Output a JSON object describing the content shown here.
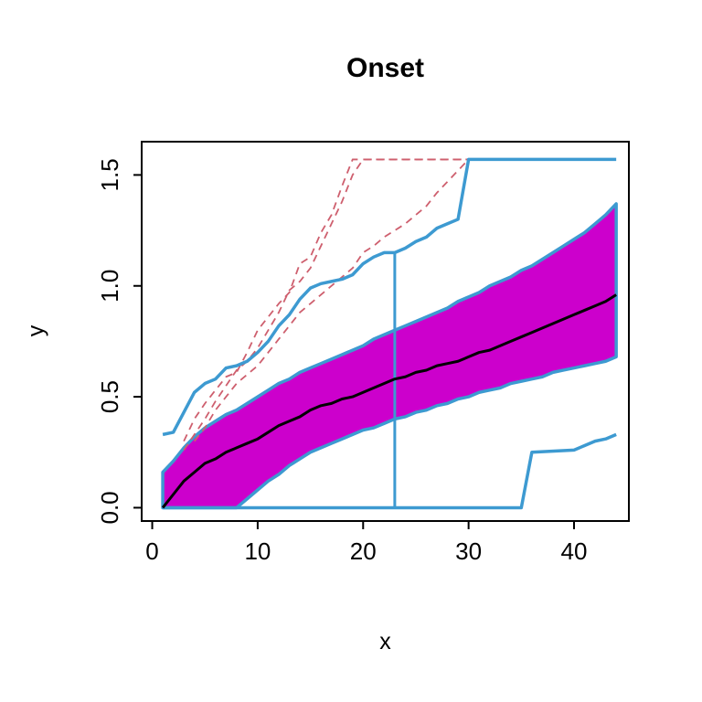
{
  "chart_data": {
    "type": "line",
    "title": "Onset",
    "xlabel": "x",
    "ylabel": "y",
    "xlim": [
      -1.0,
      45.2
    ],
    "ylim": [
      -0.06,
      1.65
    ],
    "xticks": [
      0,
      10,
      20,
      30,
      40
    ],
    "ytick_labels": [
      "0.0",
      "0.5",
      "1.0",
      "1.5"
    ],
    "ytick_values": [
      0,
      0.5,
      1.0,
      1.5
    ],
    "grid": false,
    "legend": null,
    "colors": {
      "band_fill": "#CC00CC",
      "envelope": "#3D9AD1",
      "median": "#000000",
      "dashed": "#CE5F6E",
      "box": "#000000",
      "tick": "#000000"
    },
    "band": {
      "x": [
        1,
        2,
        3,
        4,
        5,
        6,
        7,
        8,
        9,
        10,
        11,
        12,
        13,
        14,
        15,
        16,
        17,
        18,
        19,
        20,
        21,
        22,
        23,
        24,
        25,
        26,
        27,
        28,
        29,
        30,
        31,
        32,
        33,
        34,
        35,
        36,
        37,
        38,
        39,
        40,
        41,
        42,
        43,
        44
      ],
      "upper": [
        0.16,
        0.21,
        0.27,
        0.32,
        0.36,
        0.39,
        0.42,
        0.44,
        0.47,
        0.5,
        0.53,
        0.56,
        0.58,
        0.61,
        0.63,
        0.65,
        0.67,
        0.69,
        0.71,
        0.73,
        0.76,
        0.78,
        0.8,
        0.82,
        0.84,
        0.86,
        0.88,
        0.9,
        0.93,
        0.95,
        0.97,
        1.0,
        1.02,
        1.04,
        1.07,
        1.09,
        1.12,
        1.15,
        1.18,
        1.21,
        1.24,
        1.28,
        1.32,
        1.37
      ],
      "lower": [
        0.0,
        0.0,
        0.0,
        0.0,
        0.0,
        0.0,
        0.0,
        0.0,
        0.04,
        0.08,
        0.12,
        0.15,
        0.19,
        0.22,
        0.25,
        0.27,
        0.29,
        0.31,
        0.33,
        0.35,
        0.36,
        0.38,
        0.4,
        0.41,
        0.43,
        0.44,
        0.46,
        0.47,
        0.49,
        0.5,
        0.52,
        0.53,
        0.54,
        0.56,
        0.57,
        0.58,
        0.59,
        0.61,
        0.62,
        0.63,
        0.64,
        0.65,
        0.66,
        0.68
      ]
    },
    "series": [
      {
        "name": "dashed-replicate-1",
        "color": "dashed",
        "width": 1.8,
        "dash": "8 6",
        "x": [
          3,
          4,
          5,
          6,
          7,
          8,
          9,
          10,
          11,
          12,
          13,
          14,
          15,
          16,
          17,
          18,
          19,
          30
        ],
        "y": [
          0.3,
          0.4,
          0.47,
          0.53,
          0.59,
          0.61,
          0.7,
          0.8,
          0.86,
          0.92,
          0.97,
          1.1,
          1.13,
          1.24,
          1.32,
          1.45,
          1.57,
          1.57
        ]
      },
      {
        "name": "dashed-replicate-2",
        "color": "dashed",
        "width": 1.8,
        "dash": "8 6",
        "x": [
          3,
          4,
          5,
          6,
          7,
          8,
          9,
          10,
          11,
          12,
          13,
          14,
          15,
          16,
          17,
          18,
          19,
          20,
          30
        ],
        "y": [
          0.26,
          0.33,
          0.4,
          0.48,
          0.55,
          0.62,
          0.66,
          0.72,
          0.8,
          0.88,
          0.98,
          1.02,
          1.08,
          1.18,
          1.28,
          1.38,
          1.5,
          1.57,
          1.57
        ]
      },
      {
        "name": "dashed-replicate-3",
        "color": "dashed",
        "width": 1.8,
        "dash": "8 6",
        "x": [
          4,
          5,
          6,
          7,
          8,
          9,
          10,
          11,
          12,
          13,
          14,
          15,
          16,
          17,
          18,
          19,
          20,
          21,
          22,
          23,
          24,
          25,
          26,
          27,
          28,
          29,
          30
        ],
        "y": [
          0.3,
          0.36,
          0.44,
          0.5,
          0.56,
          0.6,
          0.64,
          0.7,
          0.76,
          0.82,
          0.88,
          0.92,
          0.96,
          1.0,
          1.04,
          1.08,
          1.15,
          1.18,
          1.22,
          1.25,
          1.28,
          1.32,
          1.36,
          1.42,
          1.47,
          1.52,
          1.57
        ]
      },
      {
        "name": "vertical-line",
        "color": "envelope",
        "width": 3,
        "dash": null,
        "x": [
          23,
          23
        ],
        "y": [
          0,
          1.15
        ]
      },
      {
        "name": "lower-envelope",
        "color": "envelope",
        "width": 3.5,
        "dash": null,
        "x": [
          1,
          35,
          36,
          40,
          41,
          42,
          43,
          44
        ],
        "y": [
          0.0,
          0.0,
          0.25,
          0.26,
          0.28,
          0.3,
          0.31,
          0.33
        ]
      },
      {
        "name": "upper-envelope",
        "color": "envelope",
        "width": 3.5,
        "dash": null,
        "x": [
          1,
          2,
          3,
          4,
          5,
          6,
          7,
          8,
          9,
          10,
          11,
          12,
          13,
          14,
          15,
          16,
          17,
          18,
          19,
          20,
          21,
          22,
          23,
          24,
          25,
          26,
          27,
          28,
          29,
          30,
          44
        ],
        "y": [
          0.33,
          0.34,
          0.43,
          0.52,
          0.56,
          0.58,
          0.63,
          0.64,
          0.66,
          0.7,
          0.75,
          0.82,
          0.87,
          0.94,
          0.99,
          1.01,
          1.02,
          1.03,
          1.05,
          1.1,
          1.13,
          1.15,
          1.15,
          1.17,
          1.2,
          1.22,
          1.26,
          1.28,
          1.3,
          1.57,
          1.57
        ]
      },
      {
        "name": "median",
        "color": "median",
        "width": 3,
        "dash": null,
        "x": [
          1,
          2,
          3,
          4,
          5,
          6,
          7,
          8,
          9,
          10,
          11,
          12,
          13,
          14,
          15,
          16,
          17,
          18,
          19,
          20,
          21,
          22,
          23,
          24,
          25,
          26,
          27,
          28,
          29,
          30,
          31,
          32,
          33,
          34,
          35,
          36,
          37,
          38,
          39,
          40,
          41,
          42,
          43,
          44
        ],
        "y": [
          0.0,
          0.06,
          0.12,
          0.16,
          0.2,
          0.22,
          0.25,
          0.27,
          0.29,
          0.31,
          0.34,
          0.37,
          0.39,
          0.41,
          0.44,
          0.46,
          0.47,
          0.49,
          0.5,
          0.52,
          0.54,
          0.56,
          0.58,
          0.59,
          0.61,
          0.62,
          0.64,
          0.65,
          0.66,
          0.68,
          0.7,
          0.71,
          0.73,
          0.75,
          0.77,
          0.79,
          0.81,
          0.83,
          0.85,
          0.87,
          0.89,
          0.91,
          0.93,
          0.96
        ]
      }
    ]
  }
}
